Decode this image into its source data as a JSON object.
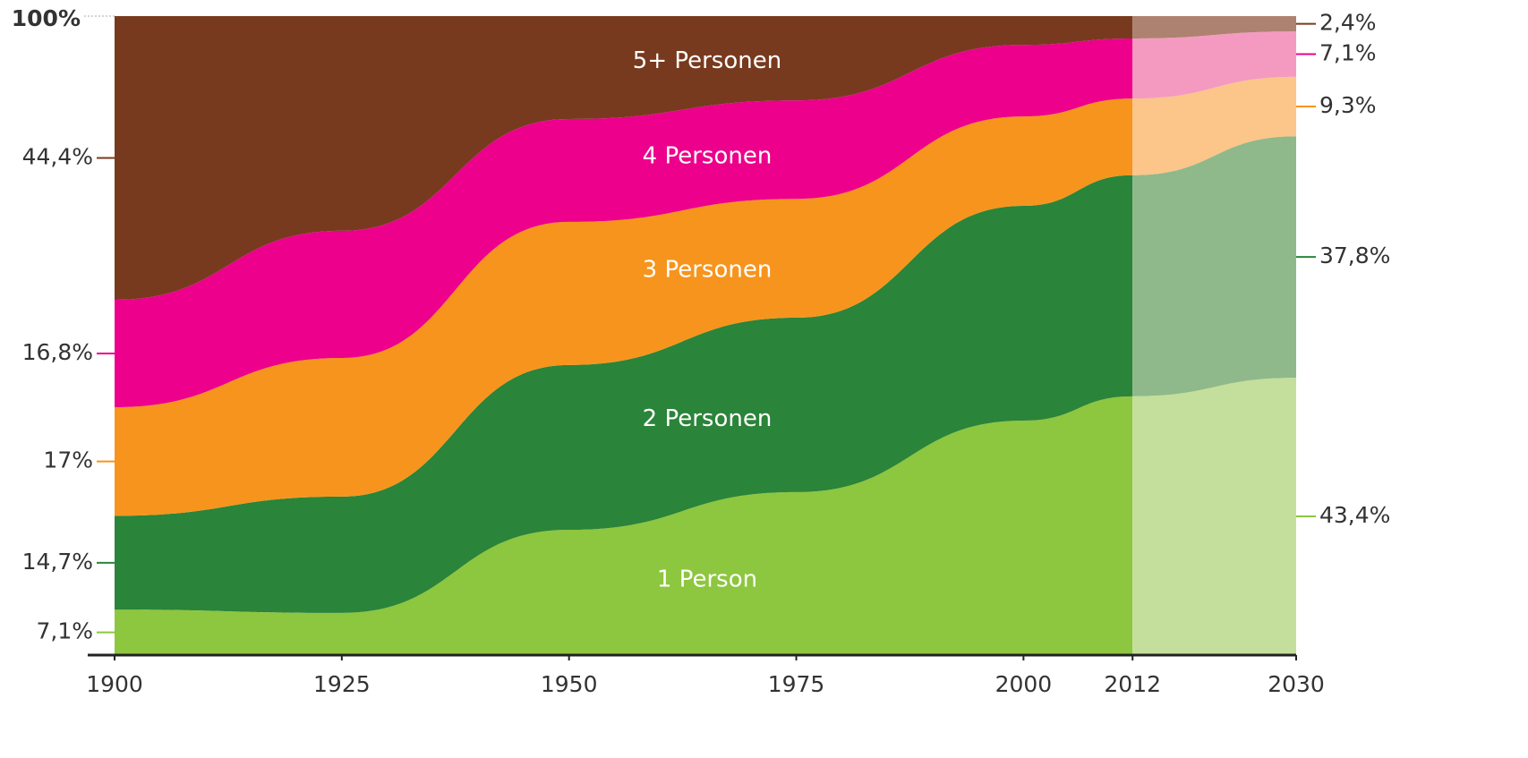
{
  "chart_data": {
    "type": "stacked_area",
    "x": [
      1900,
      1925,
      1950,
      1975,
      2000,
      2012,
      2030
    ],
    "xlim": [
      1900,
      2030
    ],
    "xticks": [
      1900,
      1925,
      1950,
      1975,
      2000,
      2012,
      2030
    ],
    "ylim": [
      0,
      100
    ],
    "yticks": [
      {
        "value": 100,
        "label": "100%"
      }
    ],
    "forecast_from": 2012,
    "series": [
      {
        "name": "1 Person",
        "color": "#8dc63f",
        "forecast_color": "#c4df9b",
        "values": [
          7.1,
          6.6,
          19.6,
          25.5,
          36.7,
          40.5,
          43.4
        ],
        "value_labels": [
          "7,1%",
          null,
          null,
          null,
          null,
          null,
          "43,4%"
        ]
      },
      {
        "name": "2 Personen",
        "color": "#2a8439",
        "forecast_color": "#8fb98a",
        "values": [
          14.7,
          18.2,
          25.8,
          27.3,
          33.6,
          34.6,
          37.8
        ],
        "value_labels": [
          "14,7%",
          null,
          null,
          null,
          null,
          null,
          "37,8%"
        ]
      },
      {
        "name": "3 Personen",
        "color": "#f7941d",
        "forecast_color": "#fcc589",
        "values": [
          17,
          21.7,
          22.4,
          18.6,
          14.0,
          12.0,
          9.3
        ],
        "value_labels": [
          "17%",
          null,
          null,
          null,
          null,
          null,
          "9,3%"
        ]
      },
      {
        "name": "4 Personen",
        "color": "#ec008c",
        "forecast_color": "#f49ac1",
        "values": [
          16.8,
          19.9,
          16.1,
          15.4,
          11.2,
          9.4,
          7.1
        ],
        "value_labels": [
          "16,8%",
          null,
          null,
          null,
          null,
          null,
          "7,1%"
        ]
      },
      {
        "name": "5+ Personen",
        "color": "#783a1e",
        "forecast_color": "#ad8270",
        "values": [
          44.4,
          33.6,
          16.1,
          13.2,
          4.5,
          3.5,
          2.4
        ],
        "value_labels": [
          "44,4%",
          null,
          null,
          null,
          null,
          null,
          "2,4%"
        ]
      }
    ]
  }
}
